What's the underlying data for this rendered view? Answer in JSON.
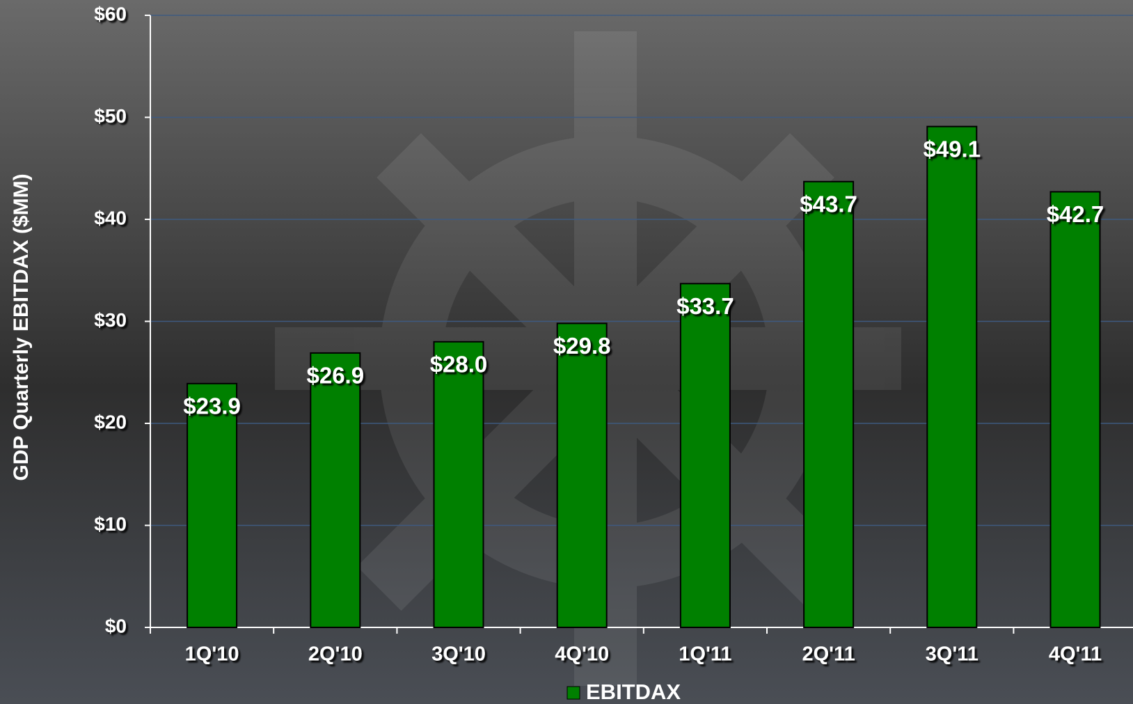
{
  "chart_data": {
    "type": "bar",
    "y_axis_label": "GDP Quarterly EBITDAX ($MM)",
    "categories": [
      "1Q'10",
      "2Q'10",
      "3Q'10",
      "4Q'10",
      "1Q'11",
      "2Q'11",
      "3Q'11",
      "4Q'11"
    ],
    "series": [
      {
        "name": "EBITDAX",
        "color": "#008000",
        "values": [
          23.9,
          26.9,
          28.0,
          29.8,
          33.7,
          43.7,
          49.1,
          42.7
        ],
        "value_labels": [
          "$23.9",
          "$26.9",
          "$28.0",
          "$29.8",
          "$33.7",
          "$43.7",
          "$49.1",
          "$42.7"
        ]
      }
    ],
    "ylim": [
      0,
      60
    ],
    "yticks": [
      {
        "value": 0,
        "label": "$0"
      },
      {
        "value": 10,
        "label": "$10"
      },
      {
        "value": 20,
        "label": "$20"
      },
      {
        "value": 30,
        "label": "$30"
      },
      {
        "value": 40,
        "label": "$40"
      },
      {
        "value": 50,
        "label": "$50"
      },
      {
        "value": 60,
        "label": "$60"
      }
    ],
    "grid": true,
    "legend": "bottom"
  }
}
